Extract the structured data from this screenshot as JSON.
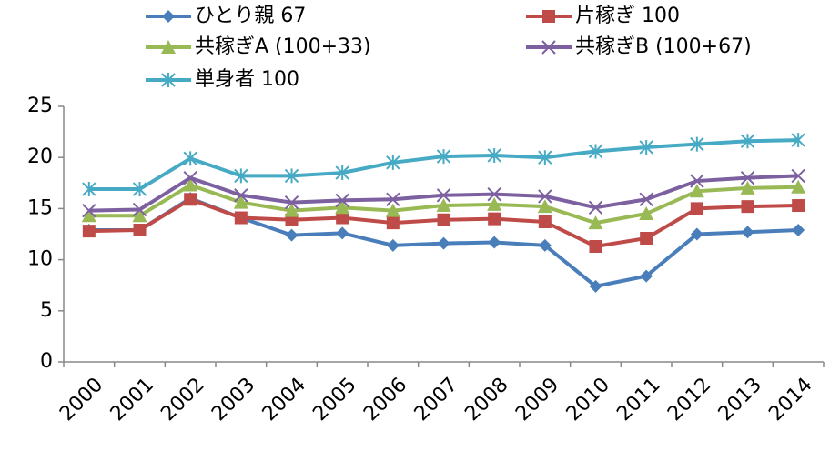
{
  "chart_data": {
    "type": "line",
    "categories": [
      "2000",
      "2001",
      "2002",
      "2003",
      "2004",
      "2005",
      "2006",
      "2007",
      "2008",
      "2009",
      "2010",
      "2011",
      "2012",
      "2013",
      "2014"
    ],
    "series": [
      {
        "name": "ひとり親 67",
        "color": "#4a7ebb",
        "marker": "diamond",
        "values": [
          12.9,
          12.9,
          16.0,
          14.1,
          12.4,
          12.6,
          11.4,
          11.6,
          11.7,
          11.4,
          7.4,
          8.4,
          12.5,
          12.7,
          12.9
        ]
      },
      {
        "name": "片稼ぎ 100",
        "color": "#be4b48",
        "marker": "square",
        "values": [
          12.8,
          12.9,
          15.9,
          14.1,
          13.9,
          14.1,
          13.6,
          13.9,
          14.0,
          13.7,
          11.3,
          12.1,
          15.0,
          15.2,
          15.3
        ]
      },
      {
        "name": "共稼ぎA (100+33)",
        "color": "#98b954",
        "marker": "triangle",
        "values": [
          14.3,
          14.3,
          17.3,
          15.6,
          14.8,
          15.1,
          14.8,
          15.3,
          15.4,
          15.2,
          13.6,
          14.5,
          16.7,
          17.0,
          17.1
        ]
      },
      {
        "name": "共稼ぎB (100+67)",
        "color": "#7d60a0",
        "marker": "x",
        "values": [
          14.8,
          14.9,
          18.0,
          16.3,
          15.6,
          15.8,
          15.9,
          16.3,
          16.4,
          16.2,
          15.1,
          15.9,
          17.7,
          18.0,
          18.2
        ]
      },
      {
        "name": "単身者 100",
        "color": "#46aac5",
        "marker": "star",
        "values": [
          16.9,
          16.9,
          19.9,
          18.2,
          18.2,
          18.5,
          19.5,
          20.1,
          20.2,
          20.0,
          20.6,
          21.0,
          21.3,
          21.6,
          21.7
        ]
      }
    ],
    "ylim": [
      0,
      25
    ],
    "yticks": [
      0,
      5,
      10,
      15,
      20,
      25
    ],
    "grid": false,
    "legend": "top"
  }
}
